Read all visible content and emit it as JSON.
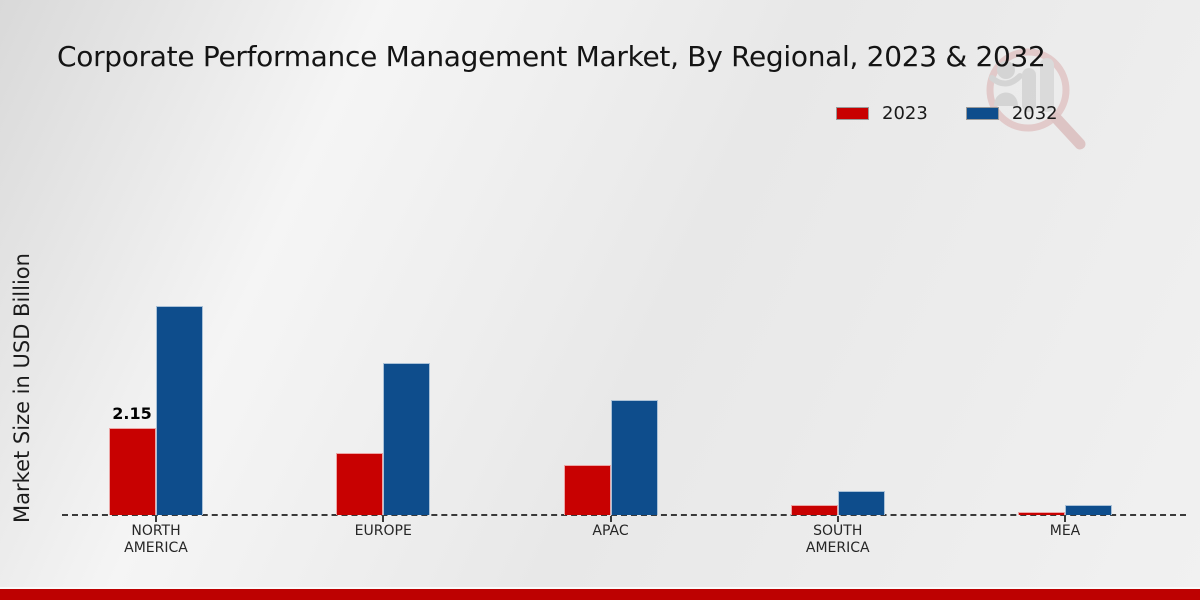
{
  "title": "Corporate Performance Management Market, By Regional, 2023 & 2032",
  "ylabel": "Market Size in USD Billion",
  "colors": {
    "series_2023": "#c80101",
    "series_2032": "#0e4d8c",
    "footer_strip": "#bd0101",
    "axis": "#3a3a3a"
  },
  "legend": {
    "position": "top-right",
    "items": [
      {
        "label": "2023",
        "color": "#c80101"
      },
      {
        "label": "2032",
        "color": "#0e4d8c"
      }
    ]
  },
  "annotation": {
    "text": "2.15",
    "category": "NORTH AMERICA",
    "series": "2023"
  },
  "watermark_name": "market-research-magnifier-logo",
  "chart_data": {
    "type": "bar",
    "title": "Corporate Performance Management Market, By Regional, 2023 & 2032",
    "xlabel": "",
    "ylabel": "Market Size in USD Billion",
    "categories": [
      "NORTH AMERICA",
      "EUROPE",
      "APAC",
      "SOUTH AMERICA",
      "MEA"
    ],
    "series": [
      {
        "name": "2023",
        "color": "#c80101",
        "values": [
          2.15,
          1.53,
          1.24,
          0.25,
          0.07
        ]
      },
      {
        "name": "2032",
        "color": "#0e4d8c",
        "values": [
          5.17,
          3.76,
          2.84,
          0.59,
          0.25
        ]
      }
    ],
    "ylim": [
      0,
      6
    ],
    "grid": false,
    "y_axis_ticks_visible": false,
    "baseline_style": "dashed",
    "legend_position": "top-right",
    "data_labels": [
      {
        "series": "2023",
        "category": "NORTH AMERICA",
        "label": "2.15"
      }
    ]
  }
}
